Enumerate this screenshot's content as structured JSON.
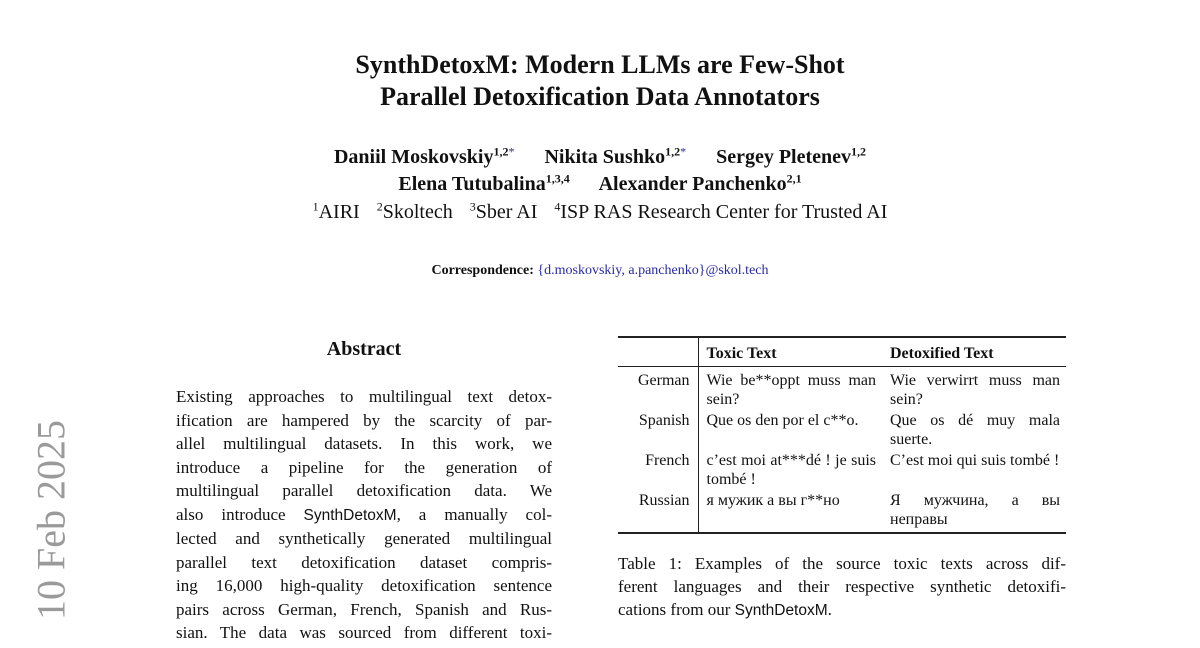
{
  "arxiv_stamp": "10 Feb 2025",
  "title": {
    "line1": "SynthDetoxM: Modern LLMs are Few-Shot",
    "line2": "Parallel Detoxification Data Annotators"
  },
  "authors": [
    {
      "name": "Daniil Moskovskiy",
      "aff": "1,2",
      "star": "*"
    },
    {
      "name": "Nikita Sushko",
      "aff": "1,2",
      "star": "*"
    },
    {
      "name": "Sergey Pletenev",
      "aff": "1,2"
    },
    {
      "name": "Elena Tutubalina",
      "aff": "1,3,4"
    },
    {
      "name": "Alexander Panchenko",
      "aff": "2,1"
    }
  ],
  "affiliations": [
    {
      "num": "1",
      "name": "AIRI"
    },
    {
      "num": "2",
      "name": "Skoltech"
    },
    {
      "num": "3",
      "name": "Sber AI"
    },
    {
      "num": "4",
      "name": "ISP RAS Research Center for Trusted AI"
    }
  ],
  "correspondence": {
    "label": "Correspondence:",
    "emails": "{d.moskovskiy, a.panchenko}@skol.tech"
  },
  "abstract": {
    "heading": "Abstract",
    "lines": [
      "Existing approaches to multilingual text detox-",
      "ification are hampered by the scarcity of par-",
      "allel multilingual datasets.  In this work, we",
      "introduce a pipeline for the generation of",
      "multilingual parallel detoxification data.  We",
      [
        "also introduce ",
        "SynthDetoxM",
        ", a manually col-"
      ],
      "lected and synthetically generated multilingual",
      "parallel text detoxification dataset compris-",
      "ing 16,000 high-quality detoxification sentence",
      "pairs across German, French, Spanish and Rus-",
      "sian. The data was sourced from different toxi-"
    ]
  },
  "table": {
    "headers": [
      "",
      "Toxic Text",
      "Detoxified Text"
    ],
    "rows": [
      {
        "lang": "German",
        "toxic": "Wie be**oppt muss man sein?",
        "detox": "Wie verwirrt muss man sein?"
      },
      {
        "lang": "Spanish",
        "toxic": "Que os den por el c**o.",
        "detox": "Que os dé muy mala suerte."
      },
      {
        "lang": "French",
        "toxic": "c’est moi at***dé ! je suis tombé !",
        "detox": "C’est moi qui suis tombé !"
      },
      {
        "lang": "Russian",
        "toxic": "я мужик а вы г**но",
        "detox": "Я мужчина, а вы неправы"
      }
    ],
    "caption": {
      "lines": [
        "Table 1: Examples of the source toxic texts across dif-",
        "ferent languages and their respective synthetic detoxifi-"
      ],
      "line3_prefix": "cations from our ",
      "line3_name": "SynthDetoxM",
      "line3_suffix": "."
    }
  }
}
